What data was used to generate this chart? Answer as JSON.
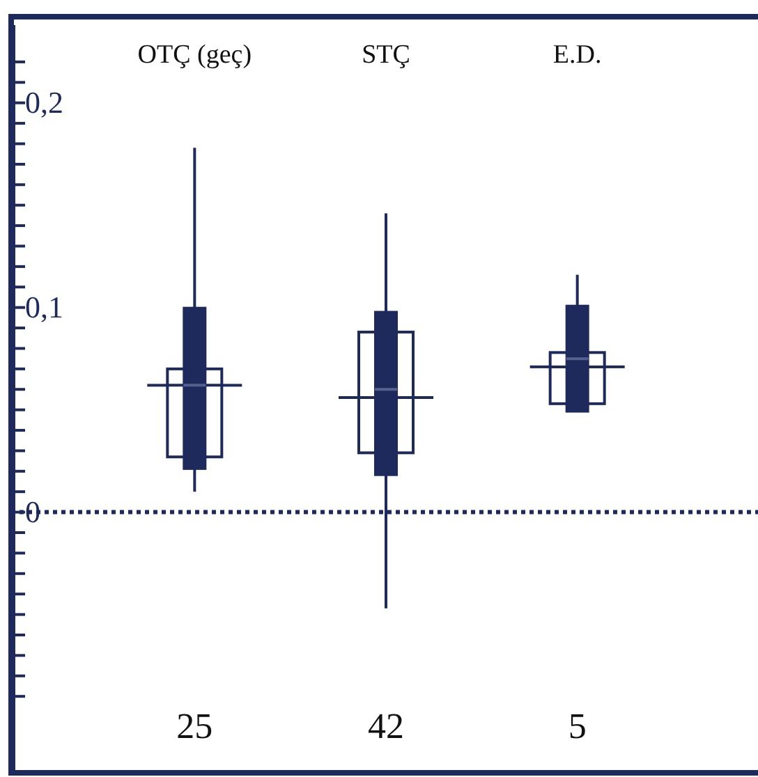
{
  "chart_data": {
    "type": "box",
    "categories": [
      "OTÇ (geç)",
      "STÇ",
      "E.D."
    ],
    "series": [
      {
        "color": "#1f2a5c",
        "boxes": [
          {
            "low": 0.027,
            "q1": 0.027,
            "median": 0.062,
            "q3": 0.07,
            "high": 0.07
          },
          {
            "low": 0.029,
            "q1": 0.029,
            "median": 0.056,
            "q3": 0.088,
            "high": 0.088
          },
          {
            "low": 0.053,
            "q1": 0.053,
            "median": 0.071,
            "q3": 0.078,
            "high": 0.078
          }
        ]
      },
      {
        "color": "#1f2a5c",
        "boxes": [
          {
            "low": 0.01,
            "q1": 0.021,
            "median": 0.062,
            "q3": 0.1,
            "high": 0.178
          },
          {
            "low": -0.047,
            "q1": 0.018,
            "median": 0.06,
            "q3": 0.098,
            "high": 0.146
          },
          {
            "low": 0.049,
            "q1": 0.049,
            "median": 0.075,
            "q3": 0.101,
            "high": 0.116
          }
        ]
      }
    ],
    "ylim": [
      -0.126,
      0.238
    ],
    "yticks": [
      {
        "value": -0.09,
        "label": null
      },
      {
        "value": -0.08,
        "label": null
      },
      {
        "value": -0.07,
        "label": null
      },
      {
        "value": -0.06,
        "label": null
      },
      {
        "value": -0.05,
        "label": null
      },
      {
        "value": -0.04,
        "label": null
      },
      {
        "value": -0.03,
        "label": null
      },
      {
        "value": -0.02,
        "label": null
      },
      {
        "value": -0.01,
        "label": null
      },
      {
        "value": 0,
        "label": "0"
      },
      {
        "value": 0.01,
        "label": null
      },
      {
        "value": 0.02,
        "label": null
      },
      {
        "value": 0.03,
        "label": null
      },
      {
        "value": 0.04,
        "label": null
      },
      {
        "value": 0.05,
        "label": null
      },
      {
        "value": 0.06,
        "label": null
      },
      {
        "value": 0.07,
        "label": null
      },
      {
        "value": 0.08,
        "label": null
      },
      {
        "value": 0.09,
        "label": null
      },
      {
        "value": 0.1,
        "label": "0,1"
      },
      {
        "value": 0.11,
        "label": null
      },
      {
        "value": 0.12,
        "label": null
      },
      {
        "value": 0.13,
        "label": null
      },
      {
        "value": 0.14,
        "label": null
      },
      {
        "value": 0.15,
        "label": null
      },
      {
        "value": 0.16,
        "label": null
      },
      {
        "value": 0.17,
        "label": null
      },
      {
        "value": 0.18,
        "label": null
      },
      {
        "value": 0.19,
        "label": null
      },
      {
        "value": 0.2,
        "label": "0,2"
      },
      {
        "value": 0.21,
        "label": null
      },
      {
        "value": 0.22,
        "label": null
      }
    ],
    "ref_lines": [
      {
        "axis": "y",
        "value": 0,
        "label": null,
        "line_style": "dotted",
        "color": "#1f2a5c"
      }
    ],
    "annotations": [
      "25",
      "42",
      "5"
    ],
    "grid": false
  }
}
